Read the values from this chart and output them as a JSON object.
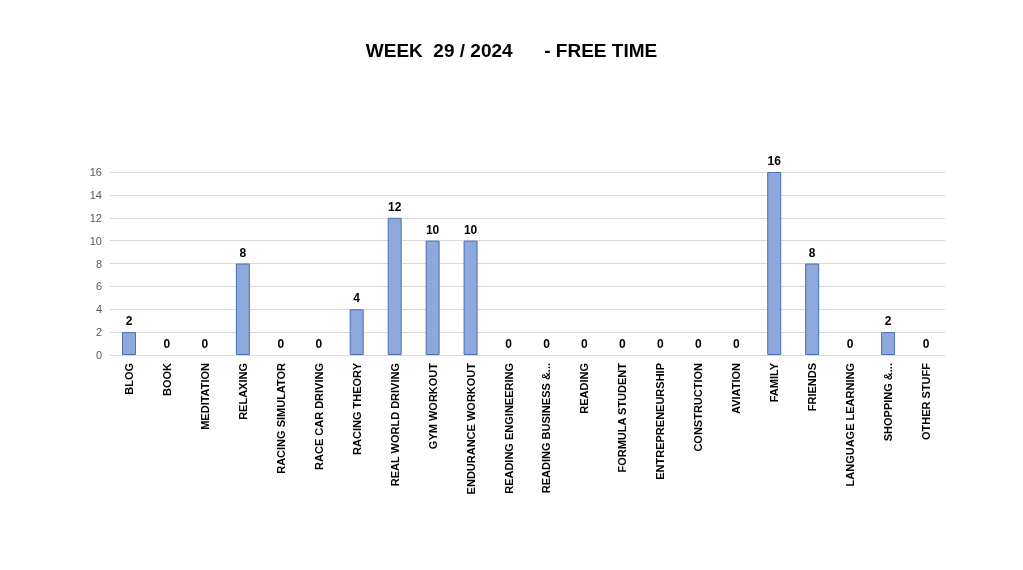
{
  "chart_data": {
    "type": "bar",
    "title": "WEEK  29 / 2024      - FREE TIME",
    "categories": [
      "BLOG",
      "BOOK",
      "MEDITATION",
      "RELAXING",
      "RACING SIMULATOR",
      "RACE CAR DRIVING",
      "RACING THEORY",
      "REAL WORLD DRIVING",
      "GYM WORKOUT",
      "ENDURANCE WORKOUT",
      "READING ENGINEERING",
      "READING BUSINESS &...",
      "READING",
      "FORMULA STUDENT",
      "ENTREPRENEURSHIP",
      "CONSTRUCTION",
      "AVIATION",
      "FAMILY",
      "FRIENDS",
      "LANGUAGE LEARNING",
      "SHOPPING &...",
      "OTHER STUFF"
    ],
    "values": [
      2,
      0,
      0,
      8,
      0,
      0,
      4,
      12,
      10,
      10,
      0,
      0,
      0,
      0,
      0,
      0,
      0,
      16,
      8,
      0,
      2,
      0
    ],
    "color": "#8fa8dc",
    "ylim": [
      0,
      16
    ],
    "yticks": [
      0,
      2,
      4,
      6,
      8,
      10,
      12,
      14,
      16
    ],
    "grid": "y",
    "data_labels": true
  }
}
